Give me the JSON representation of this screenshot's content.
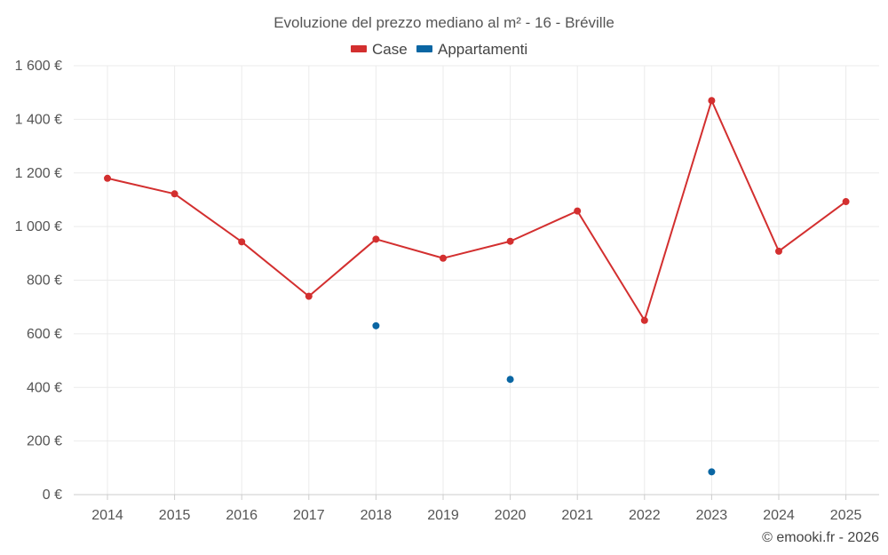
{
  "chart_data": {
    "type": "line",
    "title": "Evoluzione del prezzo mediano al m² - 16 - Bréville",
    "categories": [
      "2014",
      "2015",
      "2016",
      "2017",
      "2018",
      "2019",
      "2020",
      "2021",
      "2022",
      "2023",
      "2024",
      "2025"
    ],
    "series": [
      {
        "name": "Case",
        "color": "#d32f2f",
        "values": [
          1180,
          1122,
          943,
          740,
          953,
          882,
          945,
          1058,
          650,
          1470,
          908,
          1093
        ]
      },
      {
        "name": "Appartamenti",
        "color": "#0a66a3",
        "values": [
          null,
          null,
          null,
          null,
          630,
          null,
          430,
          null,
          null,
          85,
          null,
          null
        ]
      }
    ],
    "ylim": [
      0,
      1600
    ],
    "yticks": [
      0,
      200,
      400,
      600,
      800,
      1000,
      1200,
      1400,
      1600
    ],
    "ytick_labels": [
      "0 €",
      "200 €",
      "400 €",
      "600 €",
      "800 €",
      "1 000 €",
      "1 200 €",
      "1 400 €",
      "1 600 €"
    ],
    "xlabel": "",
    "ylabel": "",
    "legend_position": "top-center",
    "grid": true
  },
  "credit": "© emooki.fr - 2026"
}
